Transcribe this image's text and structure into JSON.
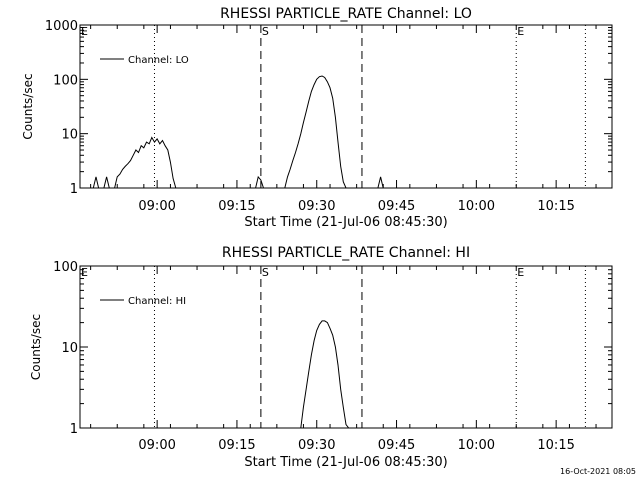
{
  "footer": {
    "timestamp": "16-Oct-2021 08:05"
  },
  "chart_data": [
    {
      "type": "line",
      "title": "RHESSI PARTICLE_RATE Channel: LO",
      "xlabel": "Start Time (21-Jul-06 08:45:30)",
      "ylabel": "Counts/sec",
      "x_unit": "minutes after 08:45:30",
      "xlim": [
        0,
        100
      ],
      "ylim": [
        1,
        1000
      ],
      "yscale": "log",
      "xticks": [
        {
          "x": 14.5,
          "label": "09:00"
        },
        {
          "x": 29.5,
          "label": "09:15"
        },
        {
          "x": 44.5,
          "label": "09:30"
        },
        {
          "x": 59.5,
          "label": "09:45"
        },
        {
          "x": 74.5,
          "label": "10:00"
        },
        {
          "x": 89.5,
          "label": "10:15"
        }
      ],
      "yticks": [
        {
          "y": 1,
          "label": "1"
        },
        {
          "y": 10,
          "label": "10"
        },
        {
          "y": 100,
          "label": "100"
        },
        {
          "y": 1000,
          "label": "1000"
        }
      ],
      "legend": {
        "label": "Channel: LO",
        "position": "top-left"
      },
      "markers": [
        {
          "x": 14.0,
          "style": "dotted",
          "label": ""
        },
        {
          "x": 34.0,
          "style": "dashed",
          "label": "S"
        },
        {
          "x": 53.0,
          "style": "dashed",
          "label": ""
        },
        {
          "x": 82.0,
          "style": "dotted",
          "label": "E"
        },
        {
          "x": 95.0,
          "style": "dotted",
          "label": ""
        }
      ],
      "corner_labels": [
        "E"
      ],
      "series": [
        {
          "name": "Channel: LO",
          "x": [
            2.5,
            3.0,
            3.5,
            4.5,
            5.0,
            5.5,
            6.5,
            7.0,
            7.5,
            8.0,
            8.5,
            9.0,
            9.5,
            10.0,
            10.5,
            11.0,
            11.5,
            12.0,
            12.5,
            13.0,
            13.5,
            14.0,
            14.5,
            15.0,
            15.5,
            16.0,
            16.5,
            17.0,
            17.5,
            18.0,
            33.0,
            33.5,
            34.0,
            34.5,
            38.5,
            39.0,
            39.5,
            40.0,
            40.5,
            41.0,
            41.5,
            42.0,
            42.5,
            43.0,
            43.5,
            44.0,
            44.5,
            45.0,
            45.5,
            46.0,
            46.5,
            47.0,
            47.5,
            48.0,
            48.5,
            49.0,
            49.5,
            50.0,
            50.5,
            51.0,
            51.5,
            52.0,
            56.0,
            56.5,
            57.0
          ],
          "y": [
            1,
            1.6,
            1,
            1,
            1.6,
            1,
            1,
            1.6,
            1.8,
            2.2,
            2.5,
            2.8,
            3.2,
            4,
            5,
            4.5,
            6,
            5.5,
            7,
            6.5,
            8.5,
            7,
            8,
            6.5,
            7.5,
            6,
            5,
            3,
            1.5,
            1,
            1,
            1.6,
            1.4,
            1,
            1,
            1.6,
            2.2,
            3.2,
            4.5,
            6.5,
            10,
            16,
            25,
            40,
            60,
            80,
            100,
            112,
            115,
            108,
            90,
            70,
            45,
            20,
            7,
            2.5,
            1.3,
            1,
            1,
            1,
            1,
            1,
            1,
            1.6,
            1
          ]
        }
      ]
    },
    {
      "type": "line",
      "title": "RHESSI PARTICLE_RATE Channel: HI",
      "xlabel": "Start Time (21-Jul-06 08:45:30)",
      "ylabel": "Counts/sec",
      "x_unit": "minutes after 08:45:30",
      "xlim": [
        0,
        100
      ],
      "ylim": [
        1,
        100
      ],
      "yscale": "log",
      "xticks": [
        {
          "x": 14.5,
          "label": "09:00"
        },
        {
          "x": 29.5,
          "label": "09:15"
        },
        {
          "x": 44.5,
          "label": "09:30"
        },
        {
          "x": 59.5,
          "label": "09:45"
        },
        {
          "x": 74.5,
          "label": "10:00"
        },
        {
          "x": 89.5,
          "label": "10:15"
        }
      ],
      "yticks": [
        {
          "y": 1,
          "label": "1"
        },
        {
          "y": 10,
          "label": "10"
        },
        {
          "y": 100,
          "label": "100"
        }
      ],
      "legend": {
        "label": "Channel: HI",
        "position": "top-left"
      },
      "markers": [
        {
          "x": 14.0,
          "style": "dotted",
          "label": ""
        },
        {
          "x": 34.0,
          "style": "dashed",
          "label": "S"
        },
        {
          "x": 53.0,
          "style": "dashed",
          "label": ""
        },
        {
          "x": 82.0,
          "style": "dotted",
          "label": "E"
        },
        {
          "x": 95.0,
          "style": "dotted",
          "label": ""
        }
      ],
      "corner_labels": [
        "E"
      ],
      "series": [
        {
          "name": "Channel: HI",
          "x": [
            41.5,
            42.0,
            42.5,
            43.0,
            43.5,
            44.0,
            44.5,
            45.0,
            45.5,
            46.0,
            46.5,
            47.0,
            47.5,
            48.0,
            48.5,
            49.0,
            49.5,
            50.0,
            50.5
          ],
          "y": [
            1,
            1.8,
            3,
            5,
            8,
            12,
            16,
            19,
            21,
            21,
            20,
            17,
            14,
            10,
            6,
            3,
            1.8,
            1.1,
            1
          ]
        }
      ]
    }
  ]
}
